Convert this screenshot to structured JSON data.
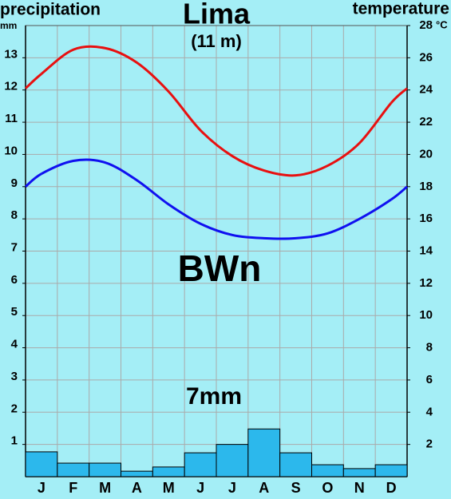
{
  "chart_data": {
    "type": "climograph",
    "title": "Lima",
    "subtitle": "(11 m)",
    "left_label": "precipitation",
    "left_unit": "mm",
    "right_label": "temperature",
    "right_unit": "°C",
    "climate_class": "BWn",
    "total_label": "7mm",
    "categories": [
      "J",
      "F",
      "M",
      "A",
      "M",
      "J",
      "J",
      "A",
      "S",
      "O",
      "N",
      "D"
    ],
    "precipitation": {
      "color": "#2cb8ec",
      "values": [
        0.77,
        0.42,
        0.42,
        0.17,
        0.3,
        0.74,
        1.0,
        1.48,
        0.74,
        0.37,
        0.25,
        0.37
      ]
    },
    "temperature_lines": [
      {
        "color": "#e81010",
        "axis": "y2",
        "values": [
          25.0,
          26.5,
          26.6,
          25.7,
          23.9,
          21.5,
          19.9,
          19.0,
          18.7,
          19.3,
          20.7,
          23.2
        ]
      },
      {
        "color": "#1010f0",
        "axis": "y2",
        "values": [
          18.8,
          19.6,
          19.5,
          18.4,
          16.9,
          15.7,
          15.0,
          14.8,
          14.8,
          15.1,
          16.0,
          17.2
        ]
      }
    ],
    "ylim": [
      0,
      14
    ],
    "yticks": [
      1,
      2,
      3,
      4,
      5,
      6,
      7,
      8,
      9,
      10,
      11,
      12,
      13
    ],
    "y2lim": [
      0,
      28
    ],
    "y2ticks": [
      2,
      4,
      6,
      8,
      10,
      12,
      14,
      16,
      18,
      20,
      22,
      24,
      26,
      28
    ],
    "grid": true
  }
}
